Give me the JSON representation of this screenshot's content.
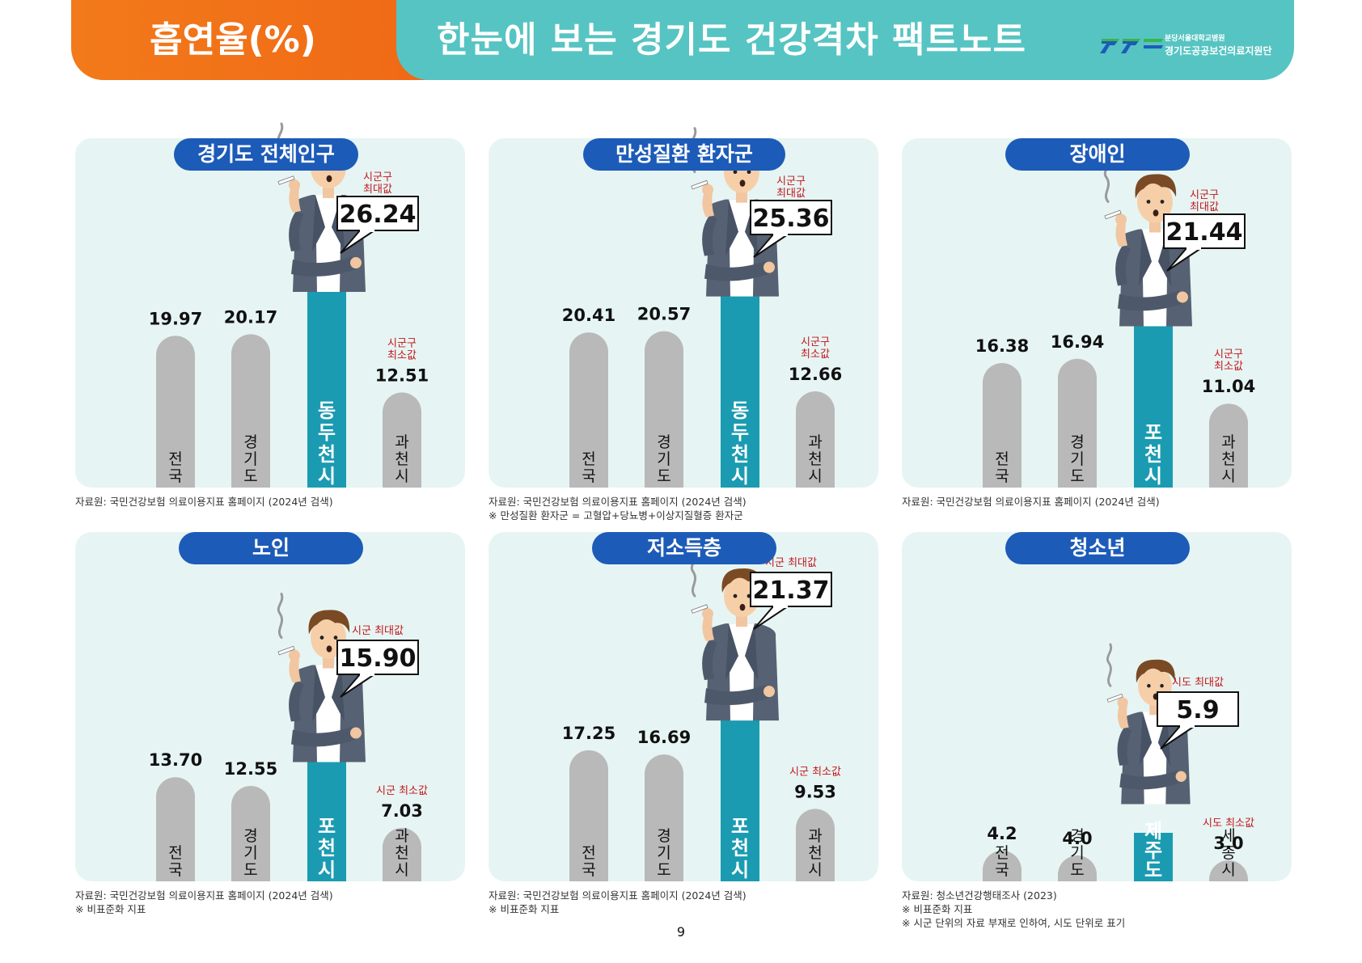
{
  "header": {
    "left_title": "흡연율(%)",
    "main_title": "한눈에 보는 경기도 건강격차 팩트노트",
    "org_line1": "분당서울대학교병원",
    "org_line2": "경기도공공보건의료지원단"
  },
  "page_number": "9",
  "chart_data": [
    {
      "type": "bar",
      "title": "경기도 전체인구",
      "categories": [
        "전국",
        "경기도",
        "동두천시",
        "과천시"
      ],
      "values": [
        19.97,
        20.17,
        26.24,
        12.51
      ],
      "value_labels": [
        "19.97",
        "20.17",
        "26.24",
        "12.51"
      ],
      "max_caption": "시군구\n최대값",
      "min_caption": "시군구\n최소값",
      "ylim": [
        0,
        30
      ],
      "colors": {
        "grey": "#b9b9b9",
        "highlight": "#1a9bb1"
      },
      "notes": [
        "자료원: 국민건강보험 의료이용지표 홈페이지 (2024년 검색)"
      ]
    },
    {
      "type": "bar",
      "title": "만성질환 환자군",
      "categories": [
        "전국",
        "경기도",
        "동두천시",
        "과천시"
      ],
      "values": [
        20.41,
        20.57,
        25.36,
        12.66
      ],
      "value_labels": [
        "20.41",
        "20.57",
        "25.36",
        "12.66"
      ],
      "max_caption": "시군구\n최대값",
      "min_caption": "시군구\n최소값",
      "ylim": [
        0,
        30
      ],
      "colors": {
        "grey": "#b9b9b9",
        "highlight": "#1a9bb1"
      },
      "notes": [
        "자료원: 국민건강보험 의료이용지표 홈페이지 (2024년 검색)",
        "※ 만성질환 환자군 = 고혈압+당뇨병+이상지질혈증 환자군"
      ]
    },
    {
      "type": "bar",
      "title": "장애인",
      "categories": [
        "전국",
        "경기도",
        "포천시",
        "과천시"
      ],
      "values": [
        16.38,
        16.94,
        21.44,
        11.04
      ],
      "value_labels": [
        "16.38",
        "16.94",
        "21.44",
        "11.04"
      ],
      "max_caption": "시군구\n최대값",
      "min_caption": "시군구\n최소값",
      "ylim": [
        0,
        30
      ],
      "colors": {
        "grey": "#b9b9b9",
        "highlight": "#1a9bb1"
      },
      "notes": [
        "자료원: 국민건강보험 의료이용지표 홈페이지 (2024년 검색)"
      ]
    },
    {
      "type": "bar",
      "title": "노인",
      "categories": [
        "전국",
        "경기도",
        "포천시",
        "과천시"
      ],
      "values": [
        13.7,
        12.55,
        15.9,
        7.03
      ],
      "value_labels": [
        "13.70",
        "12.55",
        "15.90",
        "7.03"
      ],
      "max_caption": "시군 최대값",
      "min_caption": "시군 최소값",
      "ylim": [
        0,
        30
      ],
      "colors": {
        "grey": "#b9b9b9",
        "highlight": "#1a9bb1"
      },
      "notes": [
        "자료원: 국민건강보험 의료이용지표 홈페이지 (2024년 검색)",
        "※ 비표준화 지표"
      ]
    },
    {
      "type": "bar",
      "title": "저소득층",
      "categories": [
        "전국",
        "경기도",
        "포천시",
        "과천시"
      ],
      "values": [
        17.25,
        16.69,
        21.37,
        9.53
      ],
      "value_labels": [
        "17.25",
        "16.69",
        "21.37",
        "9.53"
      ],
      "max_caption": "시군 최대값",
      "min_caption": "시군 최소값",
      "ylim": [
        0,
        30
      ],
      "colors": {
        "grey": "#b9b9b9",
        "highlight": "#1a9bb1"
      },
      "notes": [
        "자료원: 국민건강보험 의료이용지표 홈페이지 (2024년 검색)",
        "※ 비표준화 지표"
      ]
    },
    {
      "type": "bar",
      "title": "청소년",
      "categories": [
        "전국",
        "경기도",
        "제주도",
        "세종시"
      ],
      "values": [
        4.2,
        4.0,
        5.9,
        3.0
      ],
      "value_labels": [
        "4.2",
        "4.0",
        "5.9",
        "3.0"
      ],
      "max_caption": "시도 최대값",
      "min_caption": "시도 최소값",
      "ylim": [
        0,
        30
      ],
      "colors": {
        "grey": "#b9b9b9",
        "highlight": "#1a9bb1"
      },
      "notes": [
        "자료원: 청소년건강행태조사 (2023)",
        "※ 비표준화 지표",
        "※ 시군 단위의 자료 부재로 인하여, 시도 단위로 표기"
      ]
    }
  ]
}
